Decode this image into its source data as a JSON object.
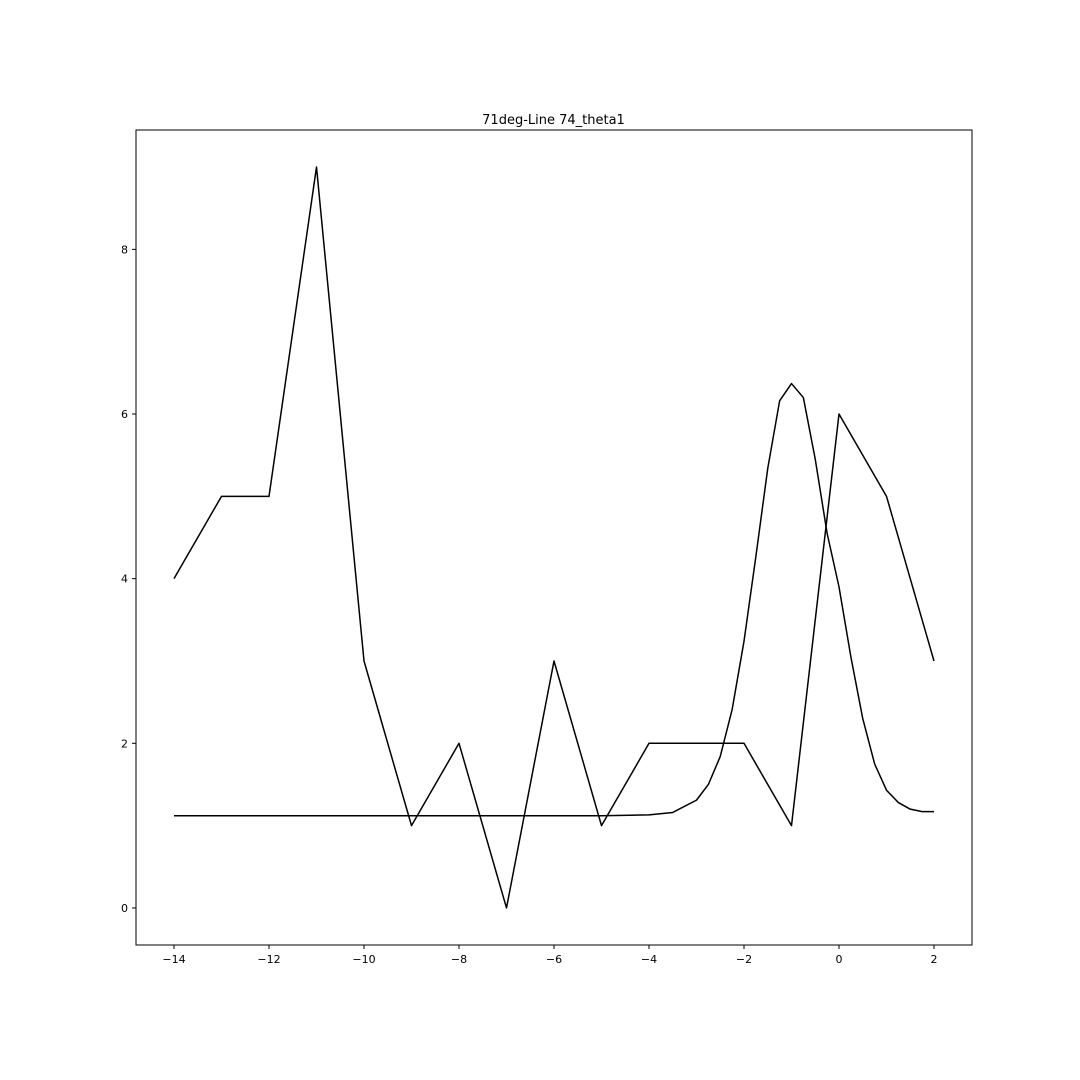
{
  "chart_data": {
    "type": "line",
    "title": "71deg-Line 74_theta1",
    "xlabel": "",
    "ylabel": "",
    "xlim": [
      -14.8,
      2.8
    ],
    "ylim": [
      -0.45,
      9.45
    ],
    "x_ticks": [
      -14,
      -12,
      -10,
      -8,
      -6,
      -4,
      -2,
      0,
      2
    ],
    "x_tick_labels": [
      "−14",
      "−12",
      "−10",
      "−8",
      "−6",
      "−4",
      "−2",
      "0",
      "2"
    ],
    "y_ticks": [
      0,
      2,
      4,
      6,
      8
    ],
    "y_tick_labels": [
      "0",
      "2",
      "4",
      "6",
      "8"
    ],
    "grid": false,
    "legend": "none",
    "colors": {
      "line": "#000000",
      "frame": "#000000",
      "background": "#ffffff"
    },
    "series": [
      {
        "x": [
          -14,
          -13,
          -12,
          -11,
          -10,
          -9,
          -8,
          -7,
          -6,
          -5,
          -4,
          -3,
          -2,
          -1,
          0,
          1,
          2
        ],
        "y": [
          4,
          5,
          5,
          9,
          3,
          1,
          2,
          0,
          3,
          1,
          2,
          2,
          2,
          1,
          6,
          5,
          3
        ]
      },
      {
        "x": [
          -14,
          -13,
          -12,
          -11,
          -10,
          -9,
          -8,
          -7,
          -6,
          -5,
          -4,
          -3.5,
          -3,
          -2.75,
          -2.5,
          -2.25,
          -2,
          -1.75,
          -1.5,
          -1.25,
          -1,
          -0.75,
          -0.5,
          -0.25,
          0,
          0.25,
          0.5,
          0.75,
          1,
          1.25,
          1.5,
          1.75,
          2
        ],
        "y": [
          1.12,
          1.12,
          1.12,
          1.12,
          1.12,
          1.12,
          1.12,
          1.12,
          1.12,
          1.12,
          1.13,
          1.16,
          1.31,
          1.5,
          1.84,
          2.41,
          3.24,
          4.27,
          5.34,
          6.16,
          6.37,
          6.2,
          5.45,
          4.55,
          3.9,
          3.05,
          2.3,
          1.75,
          1.43,
          1.28,
          1.2,
          1.17,
          1.17
        ]
      }
    ]
  }
}
